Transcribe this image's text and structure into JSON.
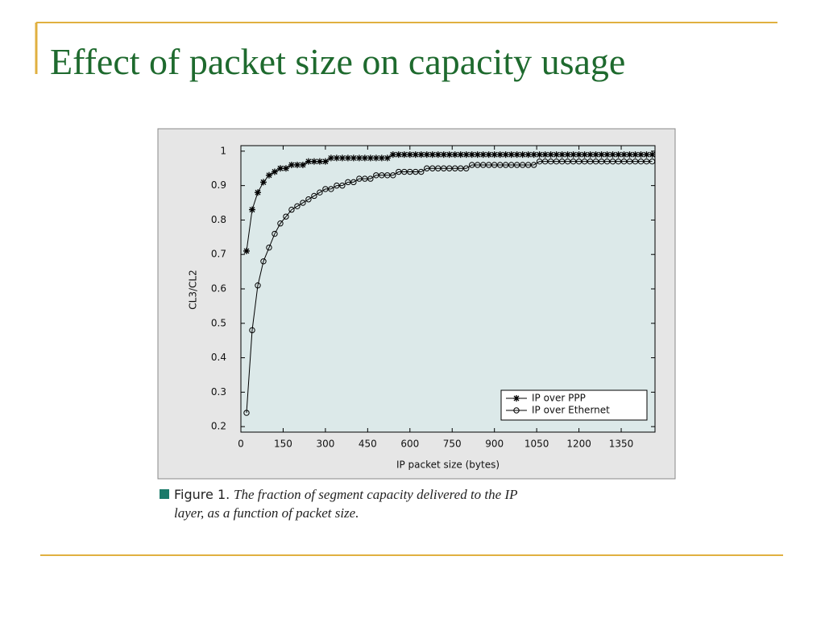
{
  "slide": {
    "title": "Effect of packet size on capacity usage"
  },
  "chart_data": {
    "type": "line",
    "x_label": "IP packet size (bytes)",
    "y_label": "CL3/CL2",
    "caption_label": "Figure 1.",
    "caption_lines": [
      "The fraction of segment capacity delivered to the IP",
      "layer, as a function of packet size."
    ],
    "xlim": [
      0,
      1470
    ],
    "ylim": [
      0.184,
      1.016
    ],
    "xticks": [
      0,
      150,
      300,
      450,
      600,
      750,
      900,
      1050,
      1200,
      1350
    ],
    "yticks": [
      0.2,
      0.3,
      0.4,
      0.5,
      0.6,
      0.7,
      0.8,
      0.9,
      1
    ],
    "legend": "lower right",
    "x": [
      20,
      40,
      60,
      80,
      100,
      120,
      140,
      160,
      180,
      200,
      220,
      240,
      260,
      280,
      300,
      320,
      340,
      360,
      380,
      400,
      420,
      440,
      460,
      480,
      500,
      520,
      540,
      560,
      580,
      600,
      620,
      640,
      660,
      680,
      700,
      720,
      740,
      760,
      780,
      800,
      820,
      840,
      860,
      880,
      900,
      920,
      940,
      960,
      980,
      1000,
      1020,
      1040,
      1060,
      1080,
      1100,
      1120,
      1140,
      1160,
      1180,
      1200,
      1220,
      1240,
      1260,
      1280,
      1300,
      1320,
      1340,
      1360,
      1380,
      1400,
      1420,
      1440,
      1460
    ],
    "series": [
      {
        "name": "IP over PPP",
        "color": "#000000",
        "marker": "asterisk",
        "values": [
          0.71,
          0.83,
          0.88,
          0.91,
          0.93,
          0.94,
          0.95,
          0.95,
          0.96,
          0.96,
          0.96,
          0.97,
          0.97,
          0.97,
          0.97,
          0.98,
          0.98,
          0.98,
          0.98,
          0.98,
          0.98,
          0.98,
          0.98,
          0.98,
          0.98,
          0.98,
          0.99,
          0.99,
          0.99,
          0.99,
          0.99,
          0.99,
          0.99,
          0.99,
          0.99,
          0.99,
          0.99,
          0.99,
          0.99,
          0.99,
          0.99,
          0.99,
          0.99,
          0.99,
          0.99,
          0.99,
          0.99,
          0.99,
          0.99,
          0.99,
          0.99,
          0.99,
          0.99,
          0.99,
          0.99,
          0.99,
          0.99,
          0.99,
          0.99,
          0.99,
          0.99,
          0.99,
          0.99,
          0.99,
          0.99,
          0.99,
          0.99,
          0.99,
          0.99,
          0.99,
          0.99,
          0.99,
          0.99
        ]
      },
      {
        "name": "IP over Ethernet",
        "color": "#000000",
        "marker": "circle",
        "values": [
          0.24,
          0.48,
          0.61,
          0.68,
          0.72,
          0.76,
          0.79,
          0.81,
          0.83,
          0.84,
          0.85,
          0.86,
          0.87,
          0.88,
          0.89,
          0.89,
          0.9,
          0.9,
          0.91,
          0.91,
          0.92,
          0.92,
          0.92,
          0.93,
          0.93,
          0.93,
          0.93,
          0.94,
          0.94,
          0.94,
          0.94,
          0.94,
          0.95,
          0.95,
          0.95,
          0.95,
          0.95,
          0.95,
          0.95,
          0.95,
          0.96,
          0.96,
          0.96,
          0.96,
          0.96,
          0.96,
          0.96,
          0.96,
          0.96,
          0.96,
          0.96,
          0.96,
          0.97,
          0.97,
          0.97,
          0.97,
          0.97,
          0.97,
          0.97,
          0.97,
          0.97,
          0.97,
          0.97,
          0.97,
          0.97,
          0.97,
          0.97,
          0.97,
          0.97,
          0.97,
          0.97,
          0.97,
          0.97
        ]
      }
    ]
  }
}
